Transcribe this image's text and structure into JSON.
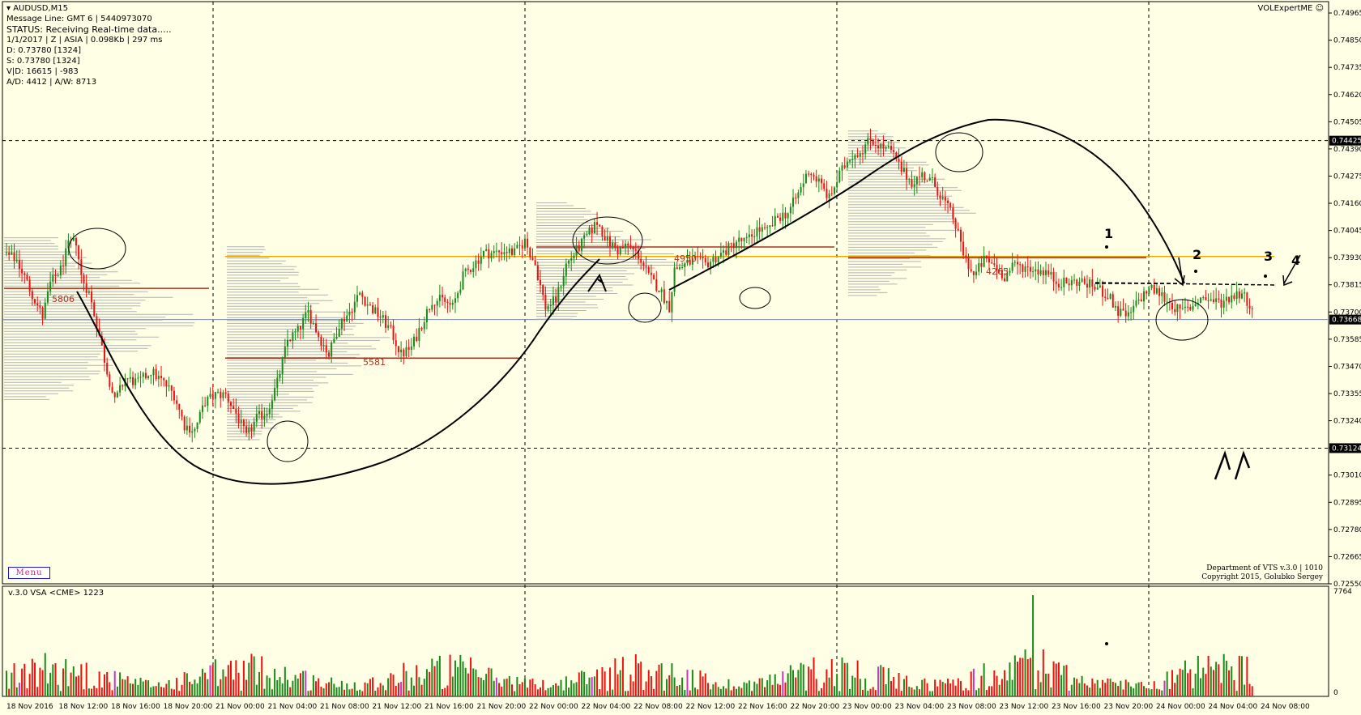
{
  "header": {
    "symbol": "AUDUSD,M15",
    "lines": [
      "Message Line: GMT 6 | 5440973070",
      "STATUS:  Receiving Real-time data.....",
      "1/1/2017 | Z | ASIA | 0.098Kb | 297 ms",
      "D: 0.73780  [1324]",
      "S: 0.73780  [1324]",
      "V|D: 16615 | -983",
      "A/D: 4412 | A/W: 8713"
    ]
  },
  "watermark": "VOLExpertME",
  "menu_label": "Menu",
  "indicator_label": "v.3.0 VSA <CME> 1223",
  "credits": [
    "Department of VTS  v.3.0 | 1010",
    "Copyright 2015, Golubko Sergey"
  ],
  "colors": {
    "background": "#ffffe6",
    "bull": "#1a8a1a",
    "bear": "#ee1111",
    "grid": "#000000",
    "poc_line": "#aa3322",
    "orange_line": "#e8a800",
    "profile": "#b3b3b3"
  },
  "chart_data": {
    "type": "candlestick",
    "title": "AUDUSD,M15",
    "ylim": [
      0.7255,
      0.7502
    ],
    "y_ticks": [
      "0.74965",
      "0.74850",
      "0.74735",
      "0.74620",
      "0.74505",
      "0.74390",
      "0.74275",
      "0.74160",
      "0.74045",
      "0.73930",
      "0.73815",
      "0.73700",
      "0.73585",
      "0.73470",
      "0.73355",
      "0.73240",
      "0.73125",
      "0.73010",
      "0.72895",
      "0.72780",
      "0.72665",
      "0.72550"
    ],
    "price_labels": [
      {
        "label": "0.74425",
        "value": 0.74425
      },
      {
        "label": "0.73668",
        "value": 0.73668
      },
      {
        "label": "0.73124",
        "value": 0.73124
      }
    ],
    "x_labels": [
      "18 Nov 2016",
      "18 Nov 12:00",
      "18 Nov 16:00",
      "18 Nov 20:00",
      "21 Nov 00:00",
      "21 Nov 04:00",
      "21 Nov 08:00",
      "21 Nov 12:00",
      "21 Nov 16:00",
      "21 Nov 20:00",
      "22 Nov 00:00",
      "22 Nov 04:00",
      "22 Nov 08:00",
      "22 Nov 12:00",
      "22 Nov 16:00",
      "22 Nov 20:00",
      "23 Nov 00:00",
      "23 Nov 04:00",
      "23 Nov 08:00",
      "23 Nov 12:00",
      "23 Nov 16:00",
      "23 Nov 20:00",
      "24 Nov 00:00",
      "24 Nov 04:00",
      "24 Nov 08:00"
    ],
    "session_separators": [
      "21 Nov 00:00",
      "22 Nov 00:00",
      "23 Nov 00:00",
      "24 Nov 00:00"
    ],
    "price_path": [
      [
        0,
        0.7395
      ],
      [
        5,
        0.7392
      ],
      [
        10,
        0.738
      ],
      [
        15,
        0.7368
      ],
      [
        18,
        0.7382
      ],
      [
        22,
        0.7388
      ],
      [
        25,
        0.7398
      ],
      [
        28,
        0.74
      ],
      [
        30,
        0.7385
      ],
      [
        33,
        0.7378
      ],
      [
        36,
        0.7365
      ],
      [
        40,
        0.7345
      ],
      [
        43,
        0.7332
      ],
      [
        47,
        0.7342
      ],
      [
        52,
        0.734
      ],
      [
        57,
        0.7345
      ],
      [
        62,
        0.734
      ],
      [
        66,
        0.7335
      ],
      [
        70,
        0.7322
      ],
      [
        74,
        0.732
      ],
      [
        78,
        0.7332
      ],
      [
        82,
        0.7335
      ],
      [
        86,
        0.7335
      ],
      [
        90,
        0.7327
      ],
      [
        94,
        0.7317
      ],
      [
        98,
        0.7325
      ],
      [
        102,
        0.7328
      ],
      [
        106,
        0.734
      ],
      [
        110,
        0.7358
      ],
      [
        114,
        0.7362
      ],
      [
        118,
        0.737
      ],
      [
        122,
        0.736
      ],
      [
        126,
        0.7352
      ],
      [
        130,
        0.7365
      ],
      [
        134,
        0.737
      ],
      [
        138,
        0.7378
      ],
      [
        142,
        0.7372
      ],
      [
        146,
        0.7368
      ],
      [
        150,
        0.7362
      ],
      [
        154,
        0.7352
      ],
      [
        158,
        0.7355
      ],
      [
        162,
        0.7365
      ],
      [
        166,
        0.7375
      ],
      [
        170,
        0.7375
      ],
      [
        174,
        0.7372
      ],
      [
        178,
        0.7385
      ],
      [
        182,
        0.739
      ],
      [
        186,
        0.7395
      ],
      [
        190,
        0.7395
      ],
      [
        194,
        0.7396
      ],
      [
        198,
        0.7395
      ],
      [
        202,
        0.74
      ],
      [
        206,
        0.739
      ],
      [
        210,
        0.7372
      ],
      [
        214,
        0.7375
      ],
      [
        218,
        0.739
      ],
      [
        222,
        0.7396
      ],
      [
        226,
        0.7402
      ],
      [
        230,
        0.7408
      ],
      [
        234,
        0.74
      ],
      [
        238,
        0.7396
      ],
      [
        242,
        0.7398
      ],
      [
        246,
        0.7394
      ],
      [
        250,
        0.7385
      ],
      [
        254,
        0.738
      ],
      [
        258,
        0.7372
      ],
      [
        260,
        0.7388
      ],
      [
        264,
        0.739
      ],
      [
        268,
        0.7392
      ],
      [
        272,
        0.739
      ],
      [
        276,
        0.7393
      ],
      [
        280,
        0.7396
      ],
      [
        284,
        0.74
      ],
      [
        288,
        0.74
      ],
      [
        292,
        0.7405
      ],
      [
        296,
        0.7404
      ],
      [
        300,
        0.741
      ],
      [
        304,
        0.7412
      ],
      [
        308,
        0.742
      ],
      [
        312,
        0.743
      ],
      [
        316,
        0.7425
      ],
      [
        320,
        0.7418
      ],
      [
        324,
        0.7428
      ],
      [
        328,
        0.7436
      ],
      [
        332,
        0.7438
      ],
      [
        336,
        0.7443
      ],
      [
        340,
        0.744
      ],
      [
        344,
        0.7438
      ],
      [
        348,
        0.743
      ],
      [
        352,
        0.7425
      ],
      [
        356,
        0.7428
      ],
      [
        360,
        0.7425
      ],
      [
        364,
        0.7418
      ],
      [
        368,
        0.741
      ],
      [
        372,
        0.7395
      ],
      [
        376,
        0.7385
      ],
      [
        380,
        0.7392
      ],
      [
        384,
        0.739
      ],
      [
        388,
        0.7385
      ],
      [
        392,
        0.739
      ],
      [
        396,
        0.7389
      ],
      [
        400,
        0.7388
      ],
      [
        404,
        0.7387
      ],
      [
        408,
        0.7383
      ],
      [
        412,
        0.7382
      ],
      [
        416,
        0.7383
      ],
      [
        420,
        0.7382
      ],
      [
        424,
        0.738
      ],
      [
        428,
        0.7377
      ],
      [
        432,
        0.737
      ],
      [
        436,
        0.7368
      ],
      [
        440,
        0.7375
      ],
      [
        444,
        0.738
      ],
      [
        448,
        0.7378
      ],
      [
        452,
        0.7374
      ],
      [
        456,
        0.737
      ],
      [
        460,
        0.7372
      ],
      [
        464,
        0.7376
      ],
      [
        468,
        0.7375
      ],
      [
        472,
        0.7374
      ],
      [
        476,
        0.7377
      ],
      [
        480,
        0.7378
      ],
      [
        484,
        0.7372
      ]
    ],
    "horizontal_levels": [
      {
        "name": "orange level",
        "value": 0.7392
      },
      {
        "name": "dashed resistance",
        "value": 0.7381
      }
    ],
    "annotations": [
      "1",
      "2",
      "3",
      "4"
    ],
    "volume": {
      "ylim": [
        0,
        7764
      ],
      "y_ticks": [
        "7764",
        "0"
      ],
      "spike_value": 7764
    }
  }
}
